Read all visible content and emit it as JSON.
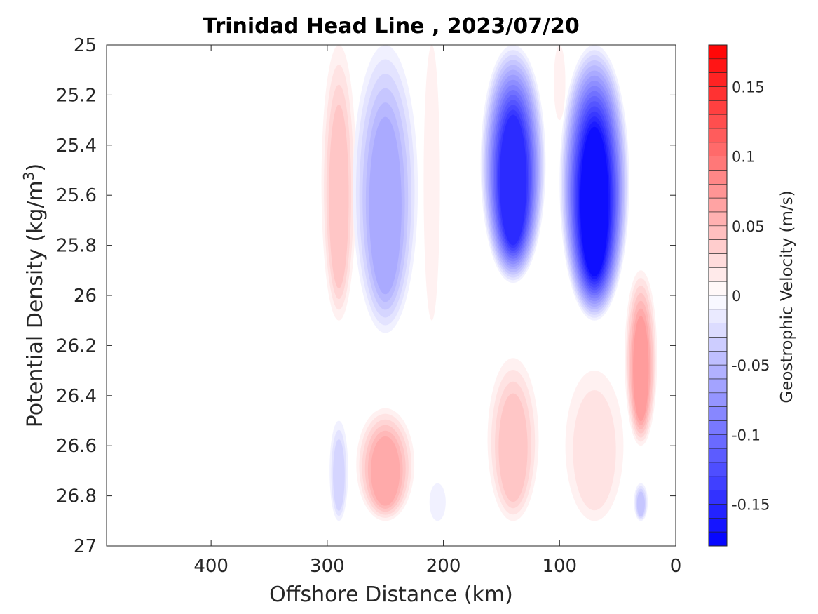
{
  "chart_data": {
    "type": "heatmap",
    "title": "Trinidad Head Line , 2023/07/20",
    "xlabel": "Offshore Distance (km)",
    "ylabel_main": "Potential Density (kg/m",
    "ylabel_sup": "3",
    "ylabel_end": ")",
    "xlim": [
      490,
      0
    ],
    "x_reversed": true,
    "ylim": [
      25,
      27
    ],
    "y_reversed": true,
    "x_ticks": [
      400,
      300,
      200,
      100,
      0
    ],
    "x_tick_labels": [
      "400",
      "300",
      "200",
      "100",
      "0"
    ],
    "y_ticks": [
      25,
      25.2,
      25.4,
      25.6,
      25.8,
      26,
      26.2,
      26.4,
      26.6,
      26.8,
      27
    ],
    "y_tick_labels": [
      "25",
      "25.2",
      "25.4",
      "25.6",
      "25.8",
      "26",
      "26.2",
      "26.4",
      "26.6",
      "26.8",
      "27"
    ],
    "grid": false,
    "colorbar": {
      "label": "Geostrophic Velocity (m/s)",
      "range": [
        -0.18,
        0.18
      ],
      "levels": 36,
      "ticks": [
        0.15,
        0.1,
        0.05,
        0,
        -0.05,
        -0.1,
        -0.15
      ],
      "tick_labels": [
        "0.15",
        "0.1",
        "0.05",
        "0",
        "-0.05",
        "-0.1",
        "-0.15"
      ],
      "color_positive": "#ff0000",
      "color_negative": "#0000ff",
      "color_zero": "#ffffff"
    },
    "data_extent": {
      "x": [
        310,
        10
      ],
      "y": [
        25,
        26.9
      ]
    },
    "features": [
      {
        "x_center": 290,
        "x_halfwidth": 15,
        "y_range": [
          25.0,
          26.1
        ],
        "peak_velocity": 0.04
      },
      {
        "x_center": 250,
        "x_halfwidth": 28,
        "y_range": [
          25.0,
          26.15
        ],
        "peak_velocity": -0.06
      },
      {
        "x_center": 140,
        "x_halfwidth": 28,
        "y_range": [
          25.0,
          25.95
        ],
        "peak_velocity": -0.15
      },
      {
        "x_center": 70,
        "x_halfwidth": 30,
        "y_range": [
          25.0,
          26.1
        ],
        "peak_velocity": -0.17
      },
      {
        "x_center": 210,
        "x_halfwidth": 7,
        "y_range": [
          25.0,
          26.1
        ],
        "peak_velocity": 0.01
      },
      {
        "x_center": 100,
        "x_halfwidth": 5,
        "y_range": [
          25.0,
          25.3
        ],
        "peak_velocity": 0.01
      },
      {
        "x_center": 30,
        "x_halfwidth": 14,
        "y_range": [
          25.9,
          26.6
        ],
        "peak_velocity": 0.07
      },
      {
        "x_center": 250,
        "x_halfwidth": 25,
        "y_range": [
          26.45,
          26.9
        ],
        "peak_velocity": 0.06
      },
      {
        "x_center": 140,
        "x_halfwidth": 22,
        "y_range": [
          26.25,
          26.9
        ],
        "peak_velocity": 0.04
      },
      {
        "x_center": 70,
        "x_halfwidth": 25,
        "y_range": [
          26.3,
          26.9
        ],
        "peak_velocity": 0.02
      },
      {
        "x_center": 290,
        "x_halfwidth": 8,
        "y_range": [
          26.5,
          26.9
        ],
        "peak_velocity": -0.03
      },
      {
        "x_center": 205,
        "x_halfwidth": 7,
        "y_range": [
          26.75,
          26.9
        ],
        "peak_velocity": -0.01
      },
      {
        "x_center": 30,
        "x_halfwidth": 6,
        "y_range": [
          26.75,
          26.9
        ],
        "peak_velocity": -0.04
      }
    ]
  }
}
